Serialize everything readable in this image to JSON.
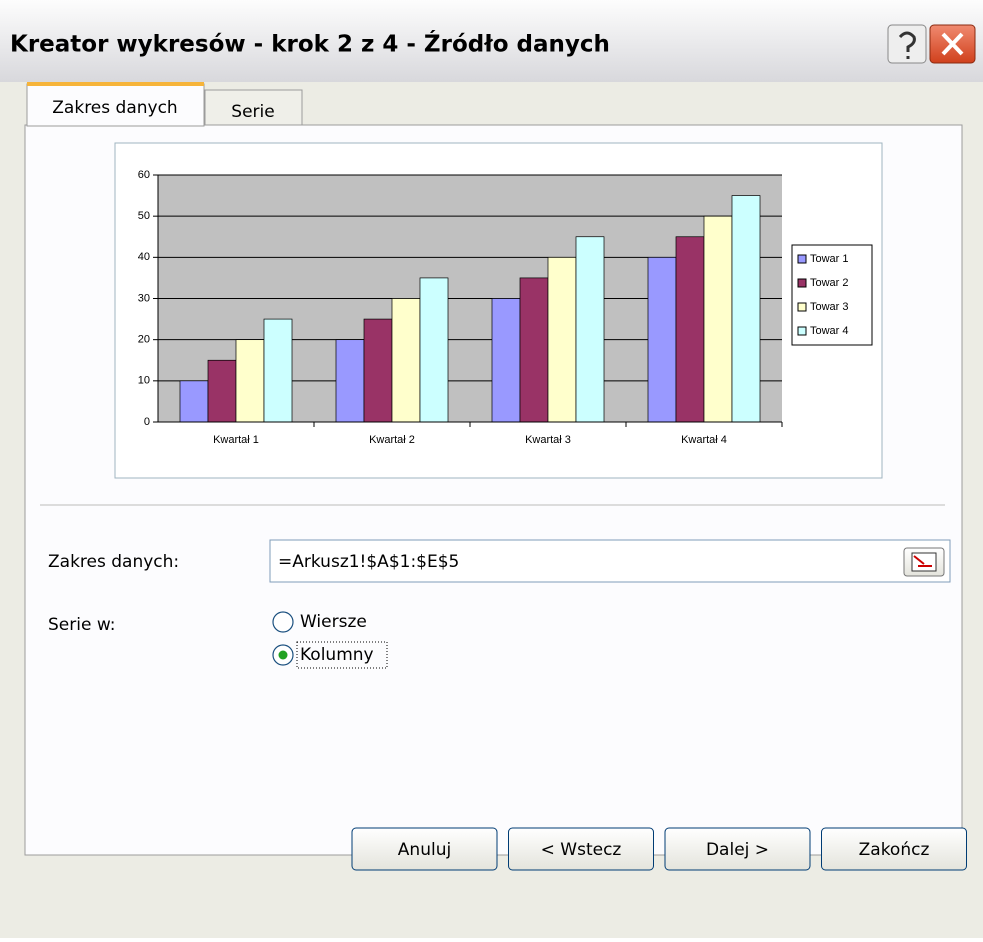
{
  "window": {
    "title": "Kreator wykresów - krok 2 z 4 - Źródło danych"
  },
  "tabs": [
    "Zakres danych",
    "Serie"
  ],
  "chart_data": {
    "type": "bar",
    "categories": [
      "Kwartał 1",
      "Kwartał 2",
      "Kwartał 3",
      "Kwartał 4"
    ],
    "series": [
      {
        "name": "Towar 1",
        "color": "#9999ff",
        "values": [
          10,
          20,
          30,
          40
        ]
      },
      {
        "name": "Towar 2",
        "color": "#993366",
        "values": [
          15,
          25,
          35,
          45
        ]
      },
      {
        "name": "Towar 3",
        "color": "#ffffcc",
        "values": [
          20,
          30,
          40,
          50
        ]
      },
      {
        "name": "Towar 4",
        "color": "#ccffff",
        "values": [
          25,
          35,
          45,
          55
        ]
      }
    ],
    "ylim": [
      0,
      60
    ],
    "yticks": [
      0,
      10,
      20,
      30,
      40,
      50,
      60
    ],
    "grid": true,
    "legend": "right"
  },
  "form": {
    "range_label": "Zakres danych:",
    "range_value": "=Arkusz1!$A$1:$E$5",
    "series_label": "Serie w:",
    "options": [
      "Wiersze",
      "Kolumny"
    ],
    "selected": 1
  },
  "buttons": [
    "Anuluj",
    "< Wstecz",
    "Dalej >",
    "Zakończ"
  ]
}
